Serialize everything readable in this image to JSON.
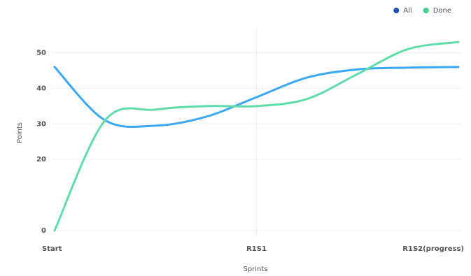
{
  "chart_data": {
    "type": "line",
    "x_label": "Sprints",
    "y_label": "Points",
    "categories": [
      "Start",
      null,
      null,
      null,
      "R1S1",
      null,
      null,
      null,
      "R1S2(progress)"
    ],
    "series": [
      {
        "name": "All",
        "color": "#3aa8f5",
        "legend_color": "#1f4fb5",
        "values": [
          46,
          31,
          29.5,
          32,
          37.5,
          43,
          45.3,
          45.8,
          46
        ]
      },
      {
        "name": "Done",
        "color": "#5fdcaa",
        "legend_color": "#3ccf8e",
        "values": [
          0,
          31,
          34,
          35,
          35,
          37,
          44,
          51,
          53
        ]
      }
    ],
    "ylim": [
      0,
      55
    ],
    "yticks": [
      0,
      20,
      30,
      40,
      50
    ],
    "grid": true,
    "legend": "top-right"
  }
}
